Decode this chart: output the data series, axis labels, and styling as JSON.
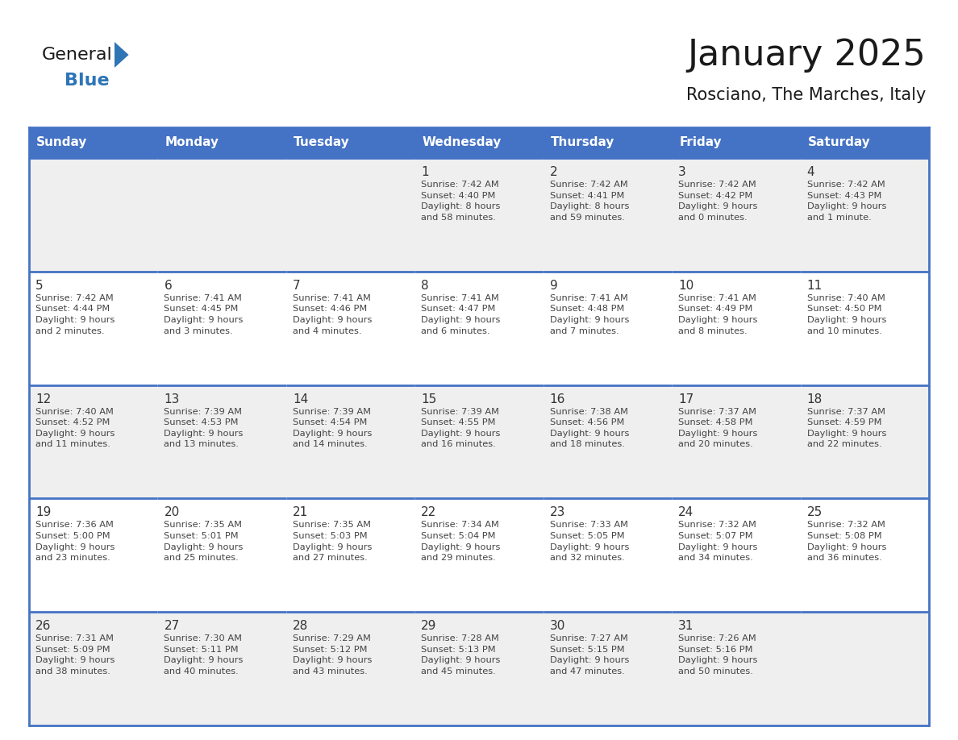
{
  "title": "January 2025",
  "subtitle": "Rosciano, The Marches, Italy",
  "header_bg_color": "#4472C4",
  "header_text_color": "#FFFFFF",
  "cell_bg_white": "#FFFFFF",
  "cell_bg_gray": "#EFEFEF",
  "border_color": "#4472C4",
  "row_divider_color": "#4472C4",
  "day_number_color": "#333333",
  "cell_text_color": "#444444",
  "title_color": "#1A1A1A",
  "subtitle_color": "#1A1A1A",
  "logo_general_color": "#1A1A1A",
  "logo_blue_color": "#2E75B6",
  "logo_triangle_color": "#2E75B6",
  "days_of_week": [
    "Sunday",
    "Monday",
    "Tuesday",
    "Wednesday",
    "Thursday",
    "Friday",
    "Saturday"
  ],
  "weeks": [
    [
      {
        "day": "",
        "text": ""
      },
      {
        "day": "",
        "text": ""
      },
      {
        "day": "",
        "text": ""
      },
      {
        "day": "1",
        "text": "Sunrise: 7:42 AM\nSunset: 4:40 PM\nDaylight: 8 hours\nand 58 minutes."
      },
      {
        "day": "2",
        "text": "Sunrise: 7:42 AM\nSunset: 4:41 PM\nDaylight: 8 hours\nand 59 minutes."
      },
      {
        "day": "3",
        "text": "Sunrise: 7:42 AM\nSunset: 4:42 PM\nDaylight: 9 hours\nand 0 minutes."
      },
      {
        "day": "4",
        "text": "Sunrise: 7:42 AM\nSunset: 4:43 PM\nDaylight: 9 hours\nand 1 minute."
      }
    ],
    [
      {
        "day": "5",
        "text": "Sunrise: 7:42 AM\nSunset: 4:44 PM\nDaylight: 9 hours\nand 2 minutes."
      },
      {
        "day": "6",
        "text": "Sunrise: 7:41 AM\nSunset: 4:45 PM\nDaylight: 9 hours\nand 3 minutes."
      },
      {
        "day": "7",
        "text": "Sunrise: 7:41 AM\nSunset: 4:46 PM\nDaylight: 9 hours\nand 4 minutes."
      },
      {
        "day": "8",
        "text": "Sunrise: 7:41 AM\nSunset: 4:47 PM\nDaylight: 9 hours\nand 6 minutes."
      },
      {
        "day": "9",
        "text": "Sunrise: 7:41 AM\nSunset: 4:48 PM\nDaylight: 9 hours\nand 7 minutes."
      },
      {
        "day": "10",
        "text": "Sunrise: 7:41 AM\nSunset: 4:49 PM\nDaylight: 9 hours\nand 8 minutes."
      },
      {
        "day": "11",
        "text": "Sunrise: 7:40 AM\nSunset: 4:50 PM\nDaylight: 9 hours\nand 10 minutes."
      }
    ],
    [
      {
        "day": "12",
        "text": "Sunrise: 7:40 AM\nSunset: 4:52 PM\nDaylight: 9 hours\nand 11 minutes."
      },
      {
        "day": "13",
        "text": "Sunrise: 7:39 AM\nSunset: 4:53 PM\nDaylight: 9 hours\nand 13 minutes."
      },
      {
        "day": "14",
        "text": "Sunrise: 7:39 AM\nSunset: 4:54 PM\nDaylight: 9 hours\nand 14 minutes."
      },
      {
        "day": "15",
        "text": "Sunrise: 7:39 AM\nSunset: 4:55 PM\nDaylight: 9 hours\nand 16 minutes."
      },
      {
        "day": "16",
        "text": "Sunrise: 7:38 AM\nSunset: 4:56 PM\nDaylight: 9 hours\nand 18 minutes."
      },
      {
        "day": "17",
        "text": "Sunrise: 7:37 AM\nSunset: 4:58 PM\nDaylight: 9 hours\nand 20 minutes."
      },
      {
        "day": "18",
        "text": "Sunrise: 7:37 AM\nSunset: 4:59 PM\nDaylight: 9 hours\nand 22 minutes."
      }
    ],
    [
      {
        "day": "19",
        "text": "Sunrise: 7:36 AM\nSunset: 5:00 PM\nDaylight: 9 hours\nand 23 minutes."
      },
      {
        "day": "20",
        "text": "Sunrise: 7:35 AM\nSunset: 5:01 PM\nDaylight: 9 hours\nand 25 minutes."
      },
      {
        "day": "21",
        "text": "Sunrise: 7:35 AM\nSunset: 5:03 PM\nDaylight: 9 hours\nand 27 minutes."
      },
      {
        "day": "22",
        "text": "Sunrise: 7:34 AM\nSunset: 5:04 PM\nDaylight: 9 hours\nand 29 minutes."
      },
      {
        "day": "23",
        "text": "Sunrise: 7:33 AM\nSunset: 5:05 PM\nDaylight: 9 hours\nand 32 minutes."
      },
      {
        "day": "24",
        "text": "Sunrise: 7:32 AM\nSunset: 5:07 PM\nDaylight: 9 hours\nand 34 minutes."
      },
      {
        "day": "25",
        "text": "Sunrise: 7:32 AM\nSunset: 5:08 PM\nDaylight: 9 hours\nand 36 minutes."
      }
    ],
    [
      {
        "day": "26",
        "text": "Sunrise: 7:31 AM\nSunset: 5:09 PM\nDaylight: 9 hours\nand 38 minutes."
      },
      {
        "day": "27",
        "text": "Sunrise: 7:30 AM\nSunset: 5:11 PM\nDaylight: 9 hours\nand 40 minutes."
      },
      {
        "day": "28",
        "text": "Sunrise: 7:29 AM\nSunset: 5:12 PM\nDaylight: 9 hours\nand 43 minutes."
      },
      {
        "day": "29",
        "text": "Sunrise: 7:28 AM\nSunset: 5:13 PM\nDaylight: 9 hours\nand 45 minutes."
      },
      {
        "day": "30",
        "text": "Sunrise: 7:27 AM\nSunset: 5:15 PM\nDaylight: 9 hours\nand 47 minutes."
      },
      {
        "day": "31",
        "text": "Sunrise: 7:26 AM\nSunset: 5:16 PM\nDaylight: 9 hours\nand 50 minutes."
      },
      {
        "day": "",
        "text": ""
      }
    ]
  ]
}
